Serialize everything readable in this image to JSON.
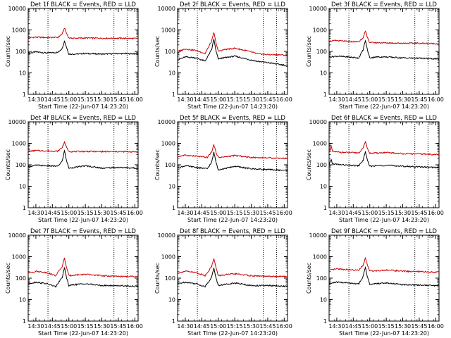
{
  "chart_data": [
    {
      "type": "line",
      "title": "Det 1f BLACK = Events, RED = LLD",
      "xlabel": "Start Time (22-Jun-07 14:23:20)",
      "ylabel": "Counts/sec",
      "y_scale": "log",
      "ylim": [
        1,
        10000
      ],
      "x_range": [
        "14:23",
        "16:03"
      ],
      "x_ticks": [
        "14:30",
        "14:45",
        "15:00",
        "15:15",
        "15:30",
        "15:45",
        "16:00"
      ],
      "y_ticks": [
        "1",
        "10",
        "100",
        "1000",
        "10000"
      ],
      "vlines": [
        "14:41",
        "15:41",
        "15:53"
      ],
      "marker": "¹²",
      "series": [
        {
          "name": "Events",
          "color": "#000000",
          "x": [
            "14:23",
            "14:30",
            "14:40",
            "14:50",
            "14:54",
            "14:56",
            "14:58",
            "15:00",
            "15:05",
            "15:15",
            "15:30",
            "15:45",
            "16:00",
            "16:03"
          ],
          "y": [
            80,
            95,
            85,
            90,
            140,
            310,
            150,
            75,
            75,
            80,
            75,
            80,
            78,
            75
          ]
        },
        {
          "name": "LLD",
          "color": "#cc0000",
          "x": [
            "14:23",
            "14:30",
            "14:40",
            "14:50",
            "14:54",
            "14:56",
            "14:58",
            "15:00",
            "15:05",
            "15:15",
            "15:30",
            "15:45",
            "16:00",
            "16:03"
          ],
          "y": [
            430,
            460,
            440,
            450,
            650,
            1250,
            680,
            420,
            410,
            420,
            410,
            410,
            400,
            400
          ]
        }
      ]
    },
    {
      "type": "line",
      "title": "Det 2f BLACK = Events, RED = LLD",
      "xlabel": "Start Time (22-Jun-07 14:23:20)",
      "ylabel": "Counts/sec",
      "y_scale": "log",
      "ylim": [
        1,
        10000
      ],
      "x_range": [
        "14:23",
        "16:03"
      ],
      "x_ticks": [
        "14:30",
        "14:45",
        "15:00",
        "15:15",
        "15:30",
        "15:45",
        "16:00"
      ],
      "y_ticks": [
        "1",
        "10",
        "100",
        "1000",
        "10000"
      ],
      "vlines": [
        "14:41",
        "15:41",
        "15:53"
      ],
      "marker": "¹²",
      "series": [
        {
          "name": "Events",
          "color": "#000000",
          "x": [
            "14:23",
            "14:30",
            "14:40",
            "14:48",
            "14:54",
            "14:56",
            "14:58",
            "15:00",
            "15:05",
            "15:15",
            "15:25",
            "15:35",
            "15:45",
            "15:55",
            "16:03"
          ],
          "y": [
            40,
            55,
            50,
            35,
            120,
            380,
            100,
            45,
            50,
            60,
            45,
            35,
            30,
            25,
            22
          ]
        },
        {
          "name": "LLD",
          "color": "#cc0000",
          "x": [
            "14:23",
            "14:30",
            "14:40",
            "14:48",
            "14:54",
            "14:56",
            "14:58",
            "15:00",
            "15:05",
            "15:15",
            "15:25",
            "15:35",
            "15:45",
            "15:55",
            "16:03"
          ],
          "y": [
            100,
            130,
            110,
            80,
            300,
            750,
            250,
            100,
            120,
            140,
            110,
            80,
            70,
            70,
            65
          ]
        }
      ]
    },
    {
      "type": "line",
      "title": "Det 3f BLACK = Events, RED = LLD",
      "xlabel": "Start Time (22-Jun-07 14:23:20)",
      "ylabel": "Counts/sec",
      "y_scale": "log",
      "ylim": [
        1,
        10000
      ],
      "x_range": [
        "14:23",
        "16:03"
      ],
      "x_ticks": [
        "14:30",
        "14:45",
        "15:00",
        "15:15",
        "15:30",
        "15:45",
        "16:00"
      ],
      "y_ticks": [
        "1",
        "10",
        "100",
        "1000",
        "10000"
      ],
      "vlines": [
        "14:41",
        "15:41",
        "15:53"
      ],
      "marker": "¹²",
      "series": [
        {
          "name": "Events",
          "color": "#000000",
          "x": [
            "14:23",
            "14:30",
            "14:40",
            "14:50",
            "14:54",
            "14:56",
            "14:58",
            "15:00",
            "15:05",
            "15:15",
            "15:30",
            "15:45",
            "16:00",
            "16:03"
          ],
          "y": [
            55,
            60,
            55,
            50,
            120,
            320,
            110,
            50,
            55,
            55,
            50,
            48,
            45,
            45
          ]
        },
        {
          "name": "LLD",
          "color": "#cc0000",
          "x": [
            "14:23",
            "14:30",
            "14:40",
            "14:50",
            "14:54",
            "14:56",
            "14:58",
            "15:00",
            "15:05",
            "15:15",
            "15:30",
            "15:45",
            "16:00",
            "16:03"
          ],
          "y": [
            300,
            320,
            290,
            280,
            450,
            850,
            420,
            260,
            255,
            250,
            240,
            240,
            230,
            230
          ]
        }
      ]
    },
    {
      "type": "line",
      "title": "Det 4f BLACK = Events, RED = LLD",
      "xlabel": "Start Time (22-Jun-07 14:23:20)",
      "ylabel": "Counts/sec",
      "y_scale": "log",
      "ylim": [
        1,
        10000
      ],
      "x_range": [
        "14:23",
        "16:03"
      ],
      "x_ticks": [
        "14:30",
        "14:45",
        "15:00",
        "15:15",
        "15:30",
        "15:45",
        "16:00"
      ],
      "y_ticks": [
        "1",
        "10",
        "100",
        "1000",
        "10000"
      ],
      "vlines": [
        "14:41",
        "15:41",
        "15:53"
      ],
      "marker": "¹²",
      "series": [
        {
          "name": "Events",
          "color": "#000000",
          "x": [
            "14:23",
            "14:30",
            "14:40",
            "14:50",
            "14:54",
            "14:56",
            "14:58",
            "15:00",
            "15:05",
            "15:15",
            "15:30",
            "15:45",
            "16:00",
            "16:03"
          ],
          "y": [
            80,
            95,
            90,
            85,
            150,
            450,
            150,
            70,
            75,
            90,
            70,
            75,
            70,
            68
          ]
        },
        {
          "name": "LLD",
          "color": "#cc0000",
          "x": [
            "14:23",
            "14:30",
            "14:40",
            "14:50",
            "14:54",
            "14:56",
            "14:58",
            "15:00",
            "15:05",
            "15:15",
            "15:30",
            "15:45",
            "16:00",
            "16:03"
          ],
          "y": [
            420,
            460,
            440,
            430,
            650,
            1150,
            620,
            420,
            410,
            420,
            410,
            410,
            400,
            400
          ]
        }
      ]
    },
    {
      "type": "line",
      "title": "Det 5f BLACK = Events, RED = LLD",
      "xlabel": "Start Time (22-Jun-07 14:23:20)",
      "ylabel": "Counts/sec",
      "y_scale": "log",
      "ylim": [
        1,
        10000
      ],
      "x_range": [
        "14:23",
        "16:03"
      ],
      "x_ticks": [
        "14:30",
        "14:45",
        "15:00",
        "15:15",
        "15:30",
        "15:45",
        "16:00"
      ],
      "y_ticks": [
        "1",
        "10",
        "100",
        "1000",
        "10000"
      ],
      "vlines": [
        "14:41",
        "15:41",
        "15:53"
      ],
      "marker": "¹²",
      "series": [
        {
          "name": "Events",
          "color": "#000000",
          "x": [
            "14:23",
            "14:30",
            "14:40",
            "14:50",
            "14:54",
            "14:56",
            "14:58",
            "15:00",
            "15:05",
            "15:15",
            "15:30",
            "15:45",
            "16:00",
            "16:03"
          ],
          "y": [
            70,
            90,
            75,
            65,
            130,
            380,
            130,
            60,
            65,
            85,
            65,
            60,
            55,
            55
          ]
        },
        {
          "name": "LLD",
          "color": "#cc0000",
          "x": [
            "14:23",
            "14:30",
            "14:40",
            "14:50",
            "14:54",
            "14:56",
            "14:58",
            "15:00",
            "15:05",
            "15:15",
            "15:30",
            "15:45",
            "16:00",
            "16:03"
          ],
          "y": [
            240,
            280,
            250,
            220,
            400,
            850,
            380,
            220,
            230,
            270,
            220,
            210,
            200,
            200
          ]
        }
      ]
    },
    {
      "type": "line",
      "title": "Det 6f BLACK = Events, RED = LLD",
      "xlabel": "Start Time (22-Jun-07 14:23:20)",
      "ylabel": "Counts/sec",
      "y_scale": "log",
      "ylim": [
        1,
        10000
      ],
      "x_range": [
        "14:23",
        "16:03"
      ],
      "x_ticks": [
        "14:30",
        "14:45",
        "15:00",
        "15:15",
        "15:30",
        "15:45",
        "16:00"
      ],
      "y_ticks": [
        "1",
        "10",
        "100",
        "1000",
        "10000"
      ],
      "vlines": [
        "14:41",
        "15:41",
        "15:53"
      ],
      "marker": "¹²",
      "series": [
        {
          "name": "Events",
          "color": "#000000",
          "x": [
            "14:23",
            "14:25",
            "14:26",
            "14:30",
            "14:40",
            "14:50",
            "14:54",
            "14:56",
            "14:58",
            "15:00",
            "15:05",
            "15:15",
            "15:30",
            "15:45",
            "16:00",
            "16:03"
          ],
          "y": [
            100,
            180,
            110,
            105,
            95,
            90,
            160,
            420,
            150,
            85,
            90,
            95,
            85,
            80,
            75,
            75
          ]
        },
        {
          "name": "LLD",
          "color": "#cc0000",
          "x": [
            "14:23",
            "14:25",
            "14:26",
            "14:30",
            "14:40",
            "14:50",
            "14:54",
            "14:56",
            "14:58",
            "15:00",
            "15:05",
            "15:15",
            "15:30",
            "15:45",
            "16:00",
            "16:03"
          ],
          "y": [
            380,
            700,
            420,
            390,
            370,
            360,
            600,
            1250,
            560,
            340,
            350,
            370,
            330,
            320,
            300,
            300
          ]
        }
      ]
    },
    {
      "type": "line",
      "title": "Det 7f BLACK = Events, RED = LLD",
      "xlabel": "Start Time (22-Jun-07 14:23:20)",
      "ylabel": "Counts/sec",
      "y_scale": "log",
      "ylim": [
        1,
        10000
      ],
      "x_range": [
        "14:23",
        "16:03"
      ],
      "x_ticks": [
        "14:30",
        "14:45",
        "15:00",
        "15:15",
        "15:30",
        "15:45",
        "16:00"
      ],
      "y_ticks": [
        "1",
        "10",
        "100",
        "1000",
        "10000"
      ],
      "vlines": [
        "14:41",
        "15:41",
        "15:53"
      ],
      "marker": "¹²",
      "series": [
        {
          "name": "Events",
          "color": "#000000",
          "x": [
            "14:23",
            "14:30",
            "14:40",
            "14:48",
            "14:54",
            "14:56",
            "14:58",
            "15:00",
            "15:05",
            "15:15",
            "15:30",
            "15:45",
            "16:00",
            "16:03"
          ],
          "y": [
            55,
            65,
            55,
            40,
            110,
            300,
            100,
            45,
            50,
            55,
            45,
            45,
            42,
            42
          ]
        },
        {
          "name": "LLD",
          "color": "#cc0000",
          "x": [
            "14:23",
            "14:30",
            "14:40",
            "14:48",
            "14:54",
            "14:56",
            "14:58",
            "15:00",
            "15:05",
            "15:15",
            "15:30",
            "15:45",
            "16:00",
            "16:03"
          ],
          "y": [
            170,
            210,
            180,
            130,
            350,
            850,
            300,
            130,
            140,
            150,
            130,
            120,
            120,
            120
          ]
        }
      ]
    },
    {
      "type": "line",
      "title": "Det 8f BLACK = Events, RED = LLD",
      "xlabel": "Start Time (22-Jun-07 14:23:20)",
      "ylabel": "Counts/sec",
      "y_scale": "log",
      "ylim": [
        1,
        10000
      ],
      "x_range": [
        "14:23",
        "16:03"
      ],
      "x_ticks": [
        "14:30",
        "14:45",
        "15:00",
        "15:15",
        "15:30",
        "15:45",
        "16:00"
      ],
      "y_ticks": [
        "1",
        "10",
        "100",
        "1000",
        "10000"
      ],
      "vlines": [
        "14:41",
        "15:41",
        "15:53"
      ],
      "marker": "¹²",
      "series": [
        {
          "name": "Events",
          "color": "#000000",
          "x": [
            "14:23",
            "14:30",
            "14:40",
            "14:48",
            "14:54",
            "14:56",
            "14:58",
            "15:00",
            "15:05",
            "15:15",
            "15:30",
            "15:45",
            "16:00",
            "16:03"
          ],
          "y": [
            55,
            65,
            55,
            40,
            110,
            300,
            100,
            45,
            50,
            60,
            45,
            45,
            42,
            42
          ]
        },
        {
          "name": "LLD",
          "color": "#cc0000",
          "x": [
            "14:23",
            "14:30",
            "14:40",
            "14:48",
            "14:54",
            "14:56",
            "14:58",
            "15:00",
            "15:05",
            "15:15",
            "15:30",
            "15:45",
            "16:00",
            "16:03"
          ],
          "y": [
            170,
            210,
            180,
            130,
            350,
            850,
            300,
            130,
            140,
            160,
            130,
            120,
            120,
            120
          ]
        }
      ]
    },
    {
      "type": "line",
      "title": "Det 9f BLACK = Events, RED = LLD",
      "xlabel": "Start Time (22-Jun-07 14:23:20)",
      "ylabel": "Counts/sec",
      "y_scale": "log",
      "ylim": [
        1,
        10000
      ],
      "x_range": [
        "14:23",
        "16:03"
      ],
      "x_ticks": [
        "14:30",
        "14:45",
        "15:00",
        "15:15",
        "15:30",
        "15:45",
        "16:00"
      ],
      "y_ticks": [
        "1",
        "10",
        "100",
        "1000",
        "10000"
      ],
      "vlines": [
        "14:41",
        "15:41",
        "15:53"
      ],
      "marker": "¹²",
      "series": [
        {
          "name": "Events",
          "color": "#000000",
          "x": [
            "14:23",
            "14:30",
            "14:40",
            "14:50",
            "14:54",
            "14:56",
            "14:58",
            "15:00",
            "15:05",
            "15:15",
            "15:30",
            "15:45",
            "16:00",
            "16:03"
          ],
          "y": [
            55,
            65,
            60,
            55,
            120,
            320,
            110,
            50,
            55,
            60,
            50,
            48,
            45,
            45
          ]
        },
        {
          "name": "LLD",
          "color": "#cc0000",
          "x": [
            "14:23",
            "14:30",
            "14:40",
            "14:50",
            "14:54",
            "14:56",
            "14:58",
            "15:00",
            "15:05",
            "15:15",
            "15:30",
            "15:45",
            "16:00",
            "16:03"
          ],
          "y": [
            230,
            270,
            250,
            230,
            400,
            850,
            380,
            220,
            220,
            240,
            210,
            200,
            190,
            190
          ]
        }
      ]
    }
  ]
}
